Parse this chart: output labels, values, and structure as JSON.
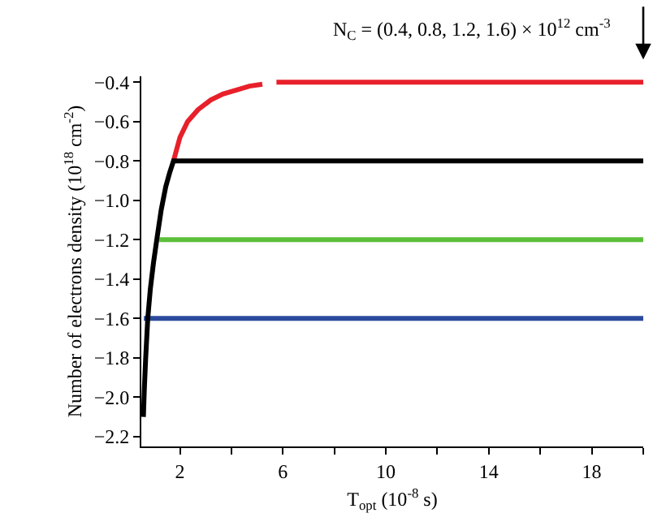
{
  "chart_data": {
    "type": "line",
    "xlabel": "T$_{opt}$ (10$^{-8}$ s)",
    "ylabel": "Number of electrons density (10$^{18}$ cm$^{-2}$)",
    "annotations": [
      {
        "text": "N$_{C}$ = (0.4, 0.8, 1.2, 1.6) × 10$^{12}$ cm$^{-3}$",
        "x": 20,
        "y": -0.4
      }
    ],
    "series": [
      {
        "color": "#2c4a9c",
        "x": [
          0.6,
          20
        ],
        "values": [
          -1.6,
          -1.6
        ]
      },
      {
        "color": "#5cbf3a",
        "x": [
          1.2,
          20
        ],
        "values": [
          -1.2,
          -1.2
        ]
      },
      {
        "color": "#e8202a",
        "x": [
          1.75,
          2.0,
          2.3,
          2.7,
          3.2,
          3.67,
          4.2,
          4.7,
          5.2,
          5.5,
          5.75,
          20
        ],
        "values": [
          -0.8,
          -0.68,
          -0.6,
          -0.54,
          -0.49,
          -0.46,
          -0.44,
          -0.42,
          -0.41,
          null,
          -0.4,
          -0.4
        ]
      },
      {
        "color": "#000000",
        "x": [
          0.58,
          0.62,
          0.67,
          0.75,
          0.85,
          0.97,
          1.1,
          1.27,
          1.45,
          1.6,
          1.75,
          20
        ],
        "values": [
          -2.1,
          -1.95,
          -1.8,
          -1.6,
          -1.45,
          -1.32,
          -1.2,
          -1.05,
          -0.93,
          -0.86,
          -0.8,
          -0.8
        ]
      }
    ],
    "xlim": [
      0.5,
      20
    ],
    "ylim": [
      -2.25,
      -0.37
    ],
    "xticks": [
      2,
      {
        "value": 4,
        "label": null
      },
      6,
      {
        "value": 8,
        "label": null
      },
      10,
      {
        "value": 12,
        "label": null
      },
      14,
      {
        "value": 16,
        "label": null
      },
      18,
      {
        "value": 20,
        "label": null
      }
    ],
    "yticks": [
      {
        "value": -2.2,
        "label": "−2.2"
      },
      {
        "value": -2.0,
        "label": "−2.0"
      },
      {
        "value": -1.8,
        "label": "−1.8"
      },
      {
        "value": -1.6,
        "label": "−1.6"
      },
      {
        "value": -1.4,
        "label": "−1.4"
      },
      {
        "value": -1.2,
        "label": "−1.2"
      },
      {
        "value": -1.0,
        "label": "−1.0"
      },
      {
        "value": -0.8,
        "label": "−0.8"
      },
      {
        "value": -0.6,
        "label": "−0.6"
      },
      {
        "value": -0.4,
        "label": "−0.4"
      }
    ],
    "marker": "none",
    "line_style": "solid"
  }
}
